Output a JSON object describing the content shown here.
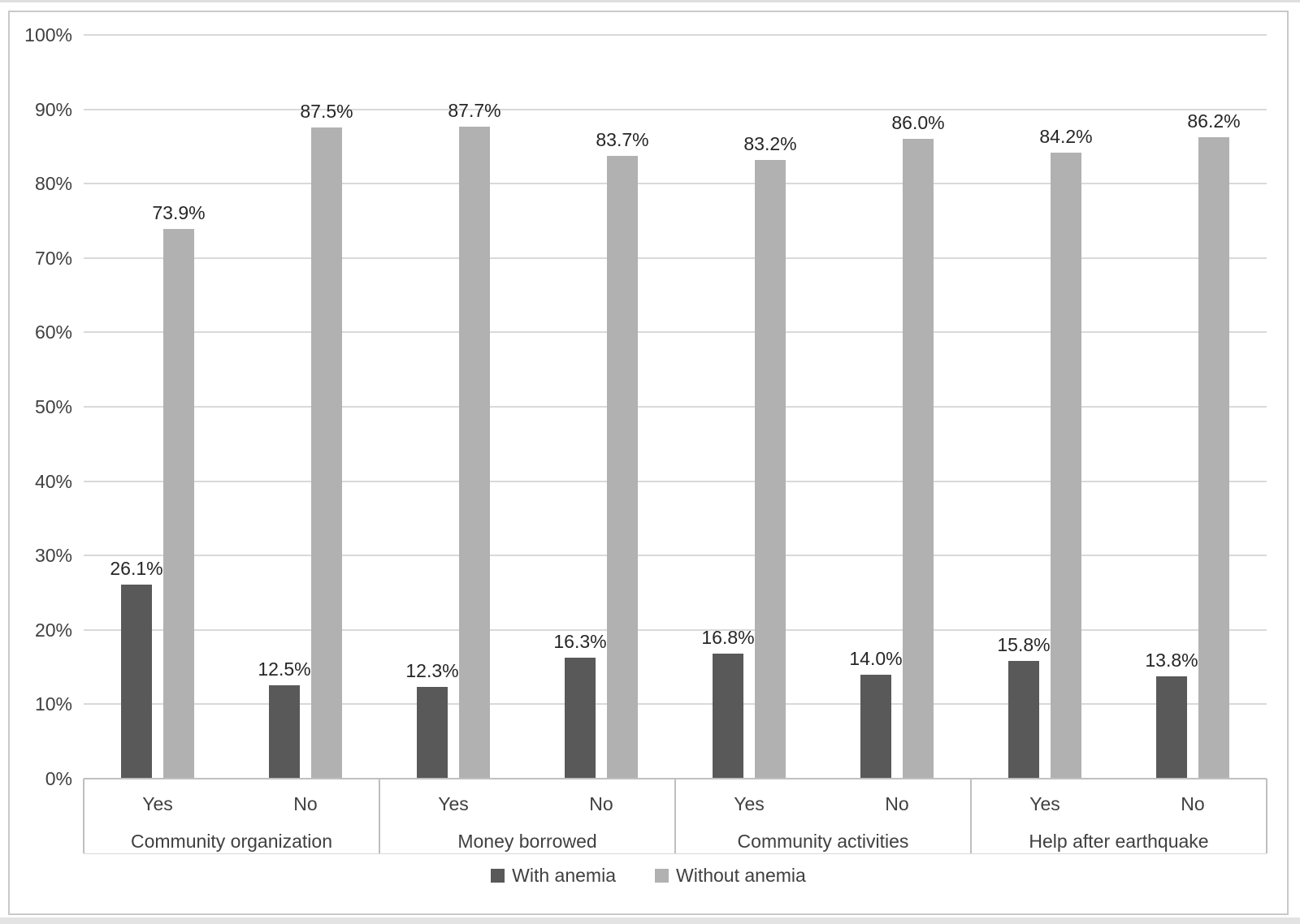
{
  "chart_data": {
    "type": "bar",
    "title": "",
    "xlabel": "",
    "ylabel": "",
    "ylim": [
      0,
      100
    ],
    "grid": true,
    "legend_position": "bottom",
    "y_ticks": [
      {
        "value": 100,
        "label": "100%"
      },
      {
        "value": 90,
        "label": "90%"
      },
      {
        "value": 80,
        "label": "80%"
      },
      {
        "value": 70,
        "label": "70%"
      },
      {
        "value": 60,
        "label": "60%"
      },
      {
        "value": 50,
        "label": "50%"
      },
      {
        "value": 40,
        "label": "40%"
      },
      {
        "value": 30,
        "label": "30%"
      },
      {
        "value": 20,
        "label": "20%"
      },
      {
        "value": 10,
        "label": "10%"
      },
      {
        "value": 0,
        "label": "0%"
      }
    ],
    "groups": [
      {
        "label": "Community organization",
        "categories": [
          "Yes",
          "No"
        ]
      },
      {
        "label": "Money borrowed",
        "categories": [
          "Yes",
          "No"
        ]
      },
      {
        "label": "Community activities",
        "categories": [
          "Yes",
          "No"
        ]
      },
      {
        "label": "Help after earthquake",
        "categories": [
          "Yes",
          "No"
        ]
      }
    ],
    "series": [
      {
        "name": "With anemia",
        "color": "#595959",
        "values": [
          26.1,
          12.5,
          12.3,
          16.3,
          16.8,
          14.0,
          15.8,
          13.8
        ],
        "labels": [
          "26.1%",
          "12.5%",
          "12.3%",
          "16.3%",
          "16.8%",
          "14.0%",
          "15.8%",
          "13.8%"
        ]
      },
      {
        "name": "Without anemia",
        "color": "#b1b1b1",
        "values": [
          73.9,
          87.5,
          87.7,
          83.7,
          83.2,
          86.0,
          84.2,
          86.2
        ],
        "labels": [
          "73.9%",
          "87.5%",
          "87.7%",
          "83.7%",
          "83.2%",
          "86.0%",
          "84.2%",
          "86.2%"
        ]
      }
    ]
  },
  "colors": {
    "gridline": "#d9d9d9",
    "axis_line": "#bfbfbf",
    "tick_text": "#404040",
    "data_label_text": "#262626",
    "frame_border": "#c9c9c9"
  }
}
